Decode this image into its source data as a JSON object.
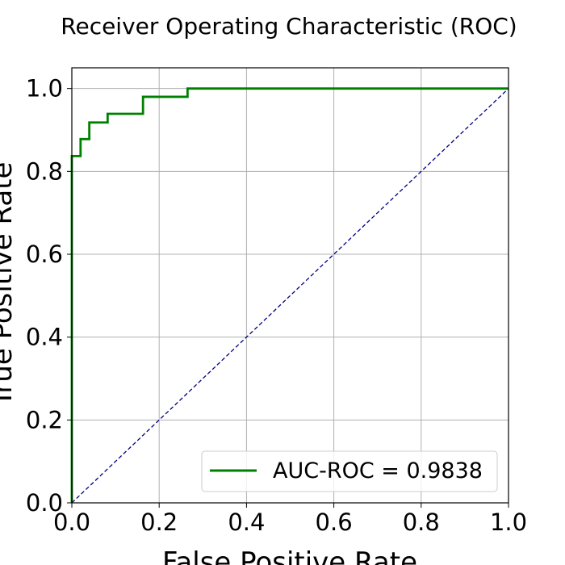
{
  "chart_data": {
    "type": "line",
    "title": "Receiver Operating Characteristic (ROC)",
    "xlabel": "False Positive Rate",
    "ylabel": "True Positive Rate",
    "xlim": [
      0.0,
      1.0
    ],
    "ylim": [
      0.0,
      1.05
    ],
    "x_ticks": [
      "0.0",
      "0.2",
      "0.4",
      "0.6",
      "0.8",
      "1.0"
    ],
    "y_ticks": [
      "0.0",
      "0.2",
      "0.4",
      "0.6",
      "0.8",
      "1.0"
    ],
    "grid": true,
    "legend_position": "lower-right",
    "series": [
      {
        "name": "AUC-ROC = 0.9838",
        "color": "#008000",
        "style": "solid",
        "x": [
          0.0,
          0.0,
          0.02,
          0.02,
          0.04,
          0.04,
          0.082,
          0.082,
          0.163,
          0.163,
          0.265,
          0.265,
          1.0
        ],
        "y": [
          0.0,
          0.837,
          0.837,
          0.878,
          0.878,
          0.918,
          0.918,
          0.939,
          0.939,
          0.98,
          0.98,
          1.0,
          1.0
        ]
      },
      {
        "color": "#000080",
        "style": "dashed",
        "x": [
          0.0,
          1.0
        ],
        "y": [
          0.0,
          1.0
        ]
      }
    ]
  }
}
